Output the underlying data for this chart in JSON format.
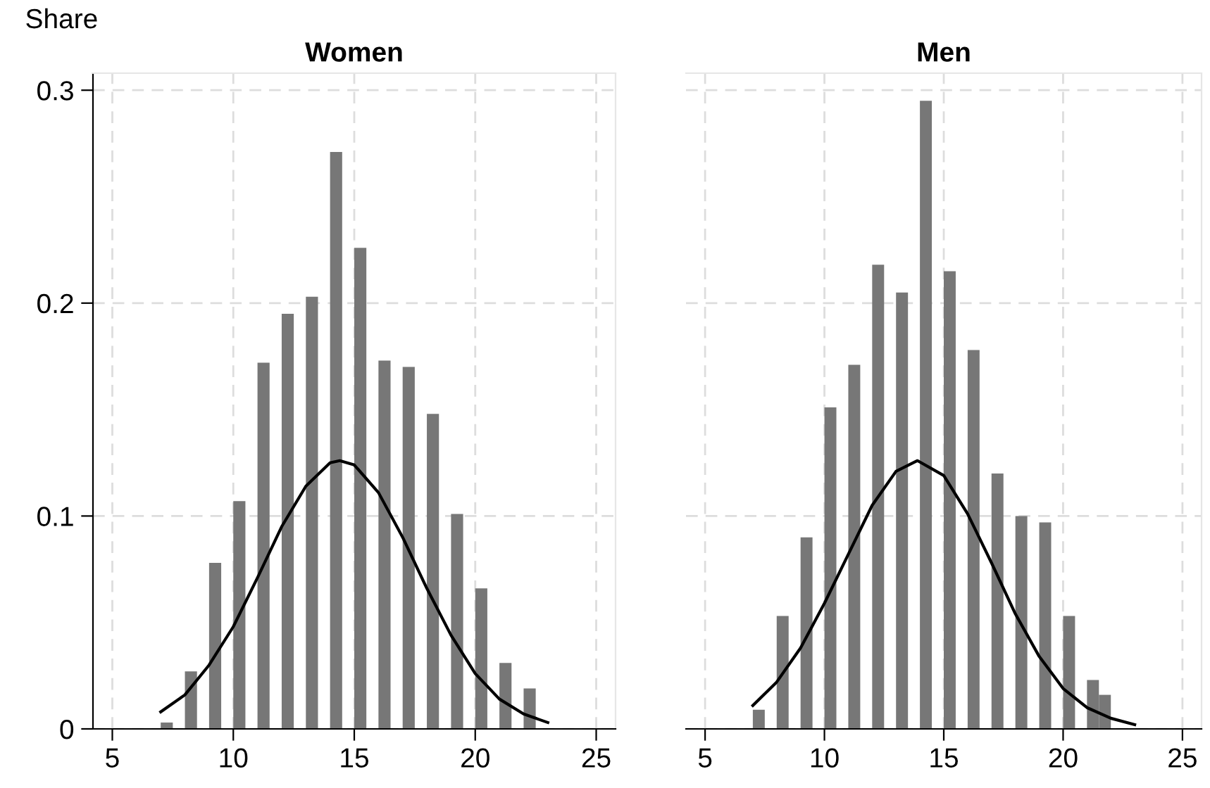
{
  "chart_data": [
    {
      "type": "bar",
      "title": "Women",
      "ylabel": "Share",
      "xlim": [
        4.2,
        25.8
      ],
      "xticks": [
        5,
        10,
        15,
        20,
        25
      ],
      "ylim": [
        0,
        0.308
      ],
      "yticks": [
        0,
        0.1,
        0.2,
        0.3
      ],
      "grid": true,
      "tick_labels": true,
      "series": [
        {
          "color": "#777777",
          "x": [
            7.25,
            8.25,
            9.25,
            10.25,
            11.25,
            12.25,
            13.25,
            14.25,
            15.25,
            16.25,
            17.25,
            18.25,
            19.25,
            20.25,
            21.25,
            22.25
          ],
          "values": [
            0.003,
            0.027,
            0.078,
            0.107,
            0.172,
            0.195,
            0.203,
            0.271,
            0.226,
            0.173,
            0.17,
            0.148,
            0.101,
            0.066,
            0.031,
            0.019
          ]
        },
        {
          "type": "line",
          "color": "#000000",
          "x": [
            7,
            8,
            9,
            10,
            11,
            12,
            13,
            14,
            14.4,
            15,
            16,
            17,
            18,
            19,
            20,
            21,
            22,
            23
          ],
          "values": [
            0.008,
            0.016,
            0.03,
            0.048,
            0.071,
            0.095,
            0.114,
            0.125,
            0.126,
            0.124,
            0.111,
            0.09,
            0.066,
            0.044,
            0.026,
            0.014,
            0.007,
            0.003
          ]
        }
      ]
    },
    {
      "type": "bar",
      "title": "Men",
      "xlim": [
        4.2,
        25.8
      ],
      "xticks": [
        5,
        10,
        15,
        20,
        25
      ],
      "ylim": [
        0,
        0.308
      ],
      "yticks": [
        0,
        0.1,
        0.2,
        0.3
      ],
      "grid": true,
      "tick_labels": "x",
      "series": [
        {
          "color": "#777777",
          "x": [
            7.25,
            8.25,
            9.25,
            10.25,
            11.25,
            12.25,
            13.25,
            14.25,
            15.25,
            16.25,
            17.25,
            18.25,
            19.25,
            20.25,
            21.25,
            21.75
          ],
          "values": [
            0.009,
            0.053,
            0.09,
            0.151,
            0.171,
            0.218,
            0.205,
            0.295,
            0.215,
            0.178,
            0.12,
            0.1,
            0.097,
            0.053,
            0.023,
            0.016
          ]
        },
        {
          "type": "line",
          "color": "#000000",
          "x": [
            7,
            8,
            9,
            10,
            11,
            12,
            13,
            13.9,
            15,
            16,
            17,
            18,
            19,
            20,
            21,
            22,
            23
          ],
          "values": [
            0.011,
            0.022,
            0.038,
            0.059,
            0.082,
            0.105,
            0.121,
            0.126,
            0.119,
            0.101,
            0.078,
            0.054,
            0.034,
            0.019,
            0.01,
            0.005,
            0.002
          ]
        }
      ]
    }
  ]
}
